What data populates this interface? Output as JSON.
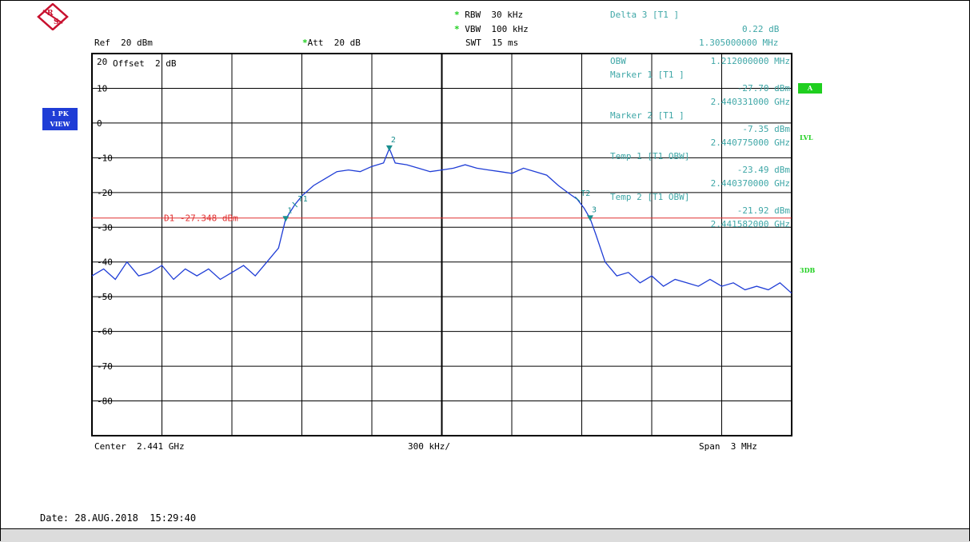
{
  "colors": {
    "trace": "#1f3dd6",
    "marker": "#1a8f8f",
    "display_line": "#e03030",
    "info_text": "#3fa7a7",
    "badge": "#1fcf1f",
    "logo": "#c8102e"
  },
  "header": {
    "rbw": "RBW  30 kHz",
    "vbw": "VBW  100 kHz",
    "swt": "SWT  15 ms",
    "ref": "Ref  20 dBm",
    "att": "Att  20 dB",
    "offset": "Offset  2 dB",
    "delta_title": "Delta 3 [T1 ]",
    "delta_value": "0.22 dB",
    "delta_freq": "1.305000000 MHz"
  },
  "logo_icon": "rohde-schwarz-logo",
  "side": {
    "trace_mode_1": "1 PK",
    "trace_mode_2": "VIEW",
    "badge": "A",
    "lvl": "LVL",
    "db3": "3DB"
  },
  "info_panel": [
    {
      "label": "OBW",
      "value": "1.212000000 MHz"
    },
    {
      "label": "Marker 1 [T1 ]",
      "value": ""
    },
    {
      "label": "",
      "value": "-27.70 dBm"
    },
    {
      "label": "",
      "value": "2.440331000 GHz"
    },
    {
      "label": "Marker 2 [T1 ]",
      "value": ""
    },
    {
      "label": "",
      "value": "-7.35 dBm"
    },
    {
      "label": "",
      "value": "2.440775000 GHz"
    },
    {
      "label": "Temp 1 [T1 OBW]",
      "value": ""
    },
    {
      "label": "",
      "value": "-23.49 dBm"
    },
    {
      "label": "",
      "value": "2.440370000 GHz"
    },
    {
      "label": "Temp 2 [T1 OBW]",
      "value": ""
    },
    {
      "label": "",
      "value": "-21.92 dBm"
    },
    {
      "label": "",
      "value": "2.441582000 GHz"
    }
  ],
  "footer": {
    "center": "Center  2.441 GHz",
    "div": "300 kHz/",
    "span": "Span  3 MHz",
    "date": "Date: 28.AUG.2018  15:29:40"
  },
  "chart_data": {
    "type": "line",
    "xlabel": "",
    "ylabel": "",
    "x_unit": "MHz",
    "xlim": [
      2439.5,
      2442.5
    ],
    "ylim": [
      -90,
      20
    ],
    "grid": true,
    "y_ticks": [
      20,
      10,
      0,
      -10,
      -20,
      -30,
      -40,
      -50,
      -60,
      -70,
      -80
    ],
    "y_tick_labels": [
      "20",
      "10",
      "0",
      "-10",
      "-20",
      "-30",
      "-40",
      "-50",
      "-60",
      "-70",
      "-80"
    ],
    "display_line": {
      "label": "D1  -27.348 dBm",
      "value": -27.348
    },
    "markers": [
      {
        "label": "1",
        "x": 2440.331,
        "y": -27.7
      },
      {
        "label": "2",
        "x": 2440.775,
        "y": -7.35
      },
      {
        "label": "3",
        "x": 2441.636,
        "y": -27.48
      }
    ],
    "temp_markers": [
      {
        "label": "T1",
        "x": 2440.37,
        "y": -23.49
      },
      {
        "label": "T2",
        "x": 2441.582,
        "y": -21.92
      }
    ],
    "series": [
      {
        "x": [
          2439.5,
          2439.55,
          2439.6,
          2439.65,
          2439.7,
          2439.75,
          2439.8,
          2439.85,
          2439.9,
          2439.95,
          2440.0,
          2440.05,
          2440.1,
          2440.15,
          2440.2,
          2440.25,
          2440.3,
          2440.33,
          2440.37,
          2440.4,
          2440.45,
          2440.5,
          2440.55,
          2440.6,
          2440.65,
          2440.7,
          2440.75,
          2440.775,
          2440.8,
          2440.85,
          2440.9,
          2440.95,
          2441.0,
          2441.05,
          2441.1,
          2441.15,
          2441.2,
          2441.25,
          2441.3,
          2441.35,
          2441.4,
          2441.45,
          2441.5,
          2441.55,
          2441.58,
          2441.61,
          2441.636,
          2441.66,
          2441.7,
          2441.75,
          2441.8,
          2441.85,
          2441.9,
          2441.95,
          2442.0,
          2442.05,
          2442.1,
          2442.15,
          2442.2,
          2442.25,
          2442.3,
          2442.35,
          2442.4,
          2442.45,
          2442.5
        ],
        "y": [
          -44,
          -42,
          -45,
          -40,
          -44,
          -43,
          -41,
          -45,
          -42,
          -44,
          -42,
          -45,
          -43,
          -41,
          -44,
          -40,
          -36,
          -27.7,
          -23.5,
          -21,
          -18,
          -16,
          -14,
          -13.5,
          -14,
          -12.5,
          -11.5,
          -7.35,
          -11.5,
          -12,
          -13,
          -14,
          -13.5,
          -13,
          -12,
          -13,
          -13.5,
          -14,
          -14.5,
          -13,
          -14,
          -15,
          -18,
          -20.5,
          -21.9,
          -24.5,
          -27.5,
          -32,
          -40,
          -44,
          -43,
          -46,
          -44,
          -47,
          -45,
          -46,
          -47,
          -45,
          -47,
          -46,
          -48,
          -47,
          -48,
          -46,
          -49
        ]
      }
    ]
  }
}
